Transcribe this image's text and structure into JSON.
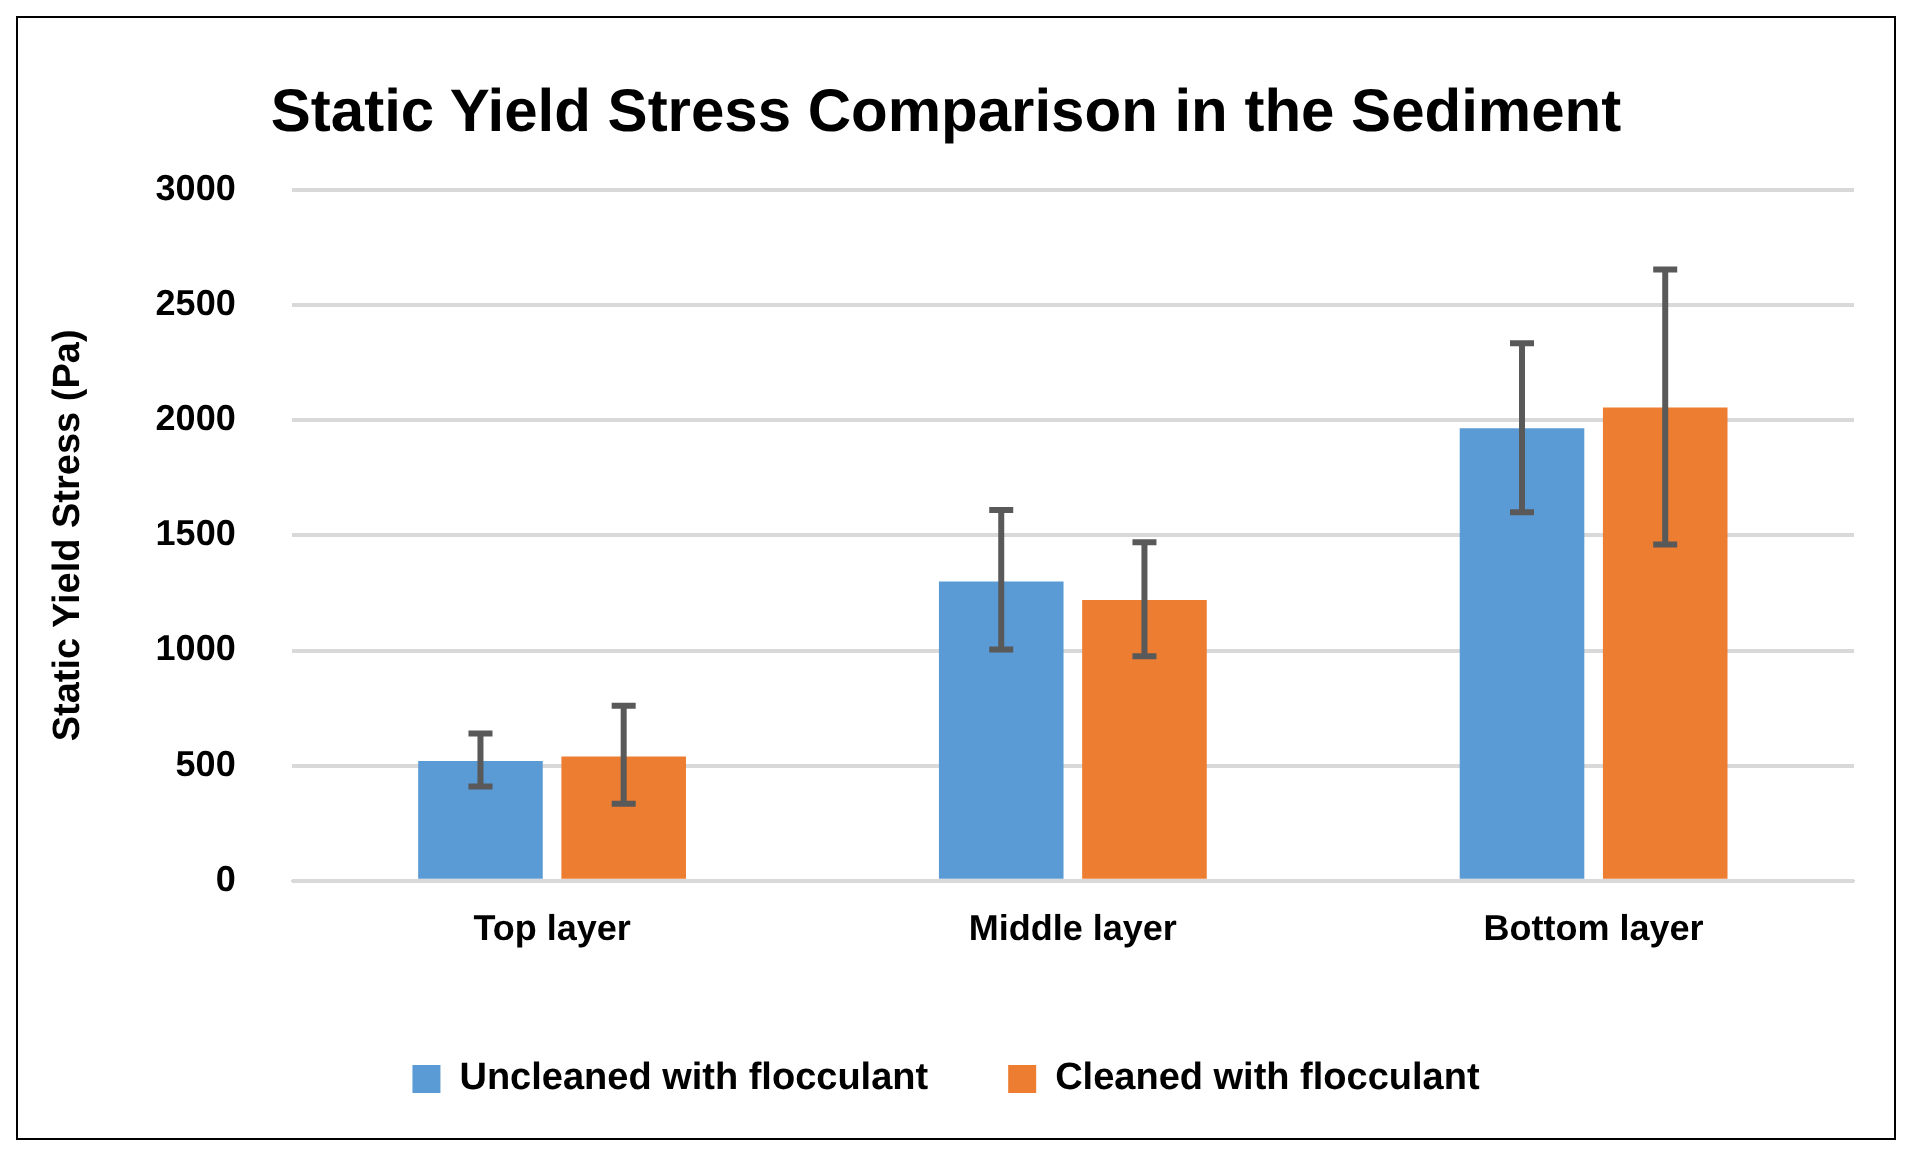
{
  "chart_data": {
    "type": "bar",
    "title": "Static Yield Stress Comparison in the Sediment",
    "ylabel": "Static Yield Stress (Pa)",
    "categories": [
      "Top layer",
      "Middle layer",
      "Bottom layer"
    ],
    "series": [
      {
        "name": "Uncleaned with flocculant",
        "color": "#5b9bd5",
        "values": [
          520,
          1300,
          1965
        ],
        "errors": [
          [
            410,
            640
          ],
          [
            1005,
            1610
          ],
          [
            1600,
            2335
          ]
        ]
      },
      {
        "name": "Cleaned with flocculant",
        "color": "#ed7d31",
        "values": [
          540,
          1220,
          2055
        ],
        "errors": [
          [
            335,
            760
          ],
          [
            975,
            1470
          ],
          [
            1460,
            2655
          ]
        ]
      }
    ],
    "ylim": [
      0,
      3000
    ],
    "yticks": [
      0,
      500,
      1000,
      1500,
      2000,
      2500,
      3000
    ],
    "grid": "y",
    "legend": "bottom"
  }
}
